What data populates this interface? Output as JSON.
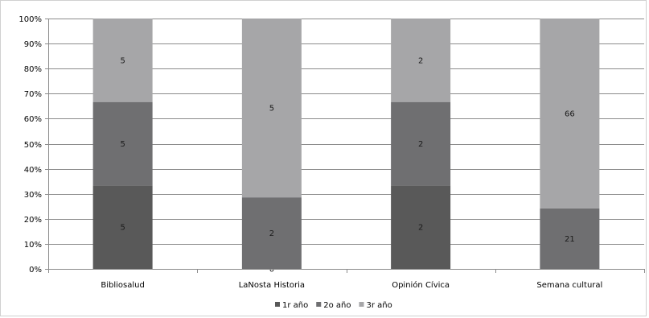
{
  "chart_data": {
    "type": "bar",
    "stacked": "percent",
    "categories": [
      "Bibliosalud",
      "LaNosta Historia",
      "Opinión Cívica",
      "Semana cultural"
    ],
    "series": [
      {
        "name": "1r año",
        "color": "#595959",
        "values": [
          5,
          0,
          2,
          0
        ],
        "labels": [
          "5",
          "0",
          "2",
          ""
        ]
      },
      {
        "name": "2o año",
        "color": "#6f6f71",
        "values": [
          5,
          2,
          2,
          21
        ],
        "labels": [
          "5",
          "2",
          "2",
          "21"
        ]
      },
      {
        "name": "3r año",
        "color": "#a6a6a8",
        "values": [
          5,
          5,
          2,
          66
        ],
        "labels": [
          "5",
          "5",
          "2",
          "66"
        ]
      }
    ],
    "yticks": [
      "0%",
      "10%",
      "20%",
      "30%",
      "40%",
      "50%",
      "60%",
      "70%",
      "80%",
      "90%",
      "100%"
    ],
    "ylim": [
      0,
      100
    ],
    "grid": true,
    "legend": "bottom"
  }
}
